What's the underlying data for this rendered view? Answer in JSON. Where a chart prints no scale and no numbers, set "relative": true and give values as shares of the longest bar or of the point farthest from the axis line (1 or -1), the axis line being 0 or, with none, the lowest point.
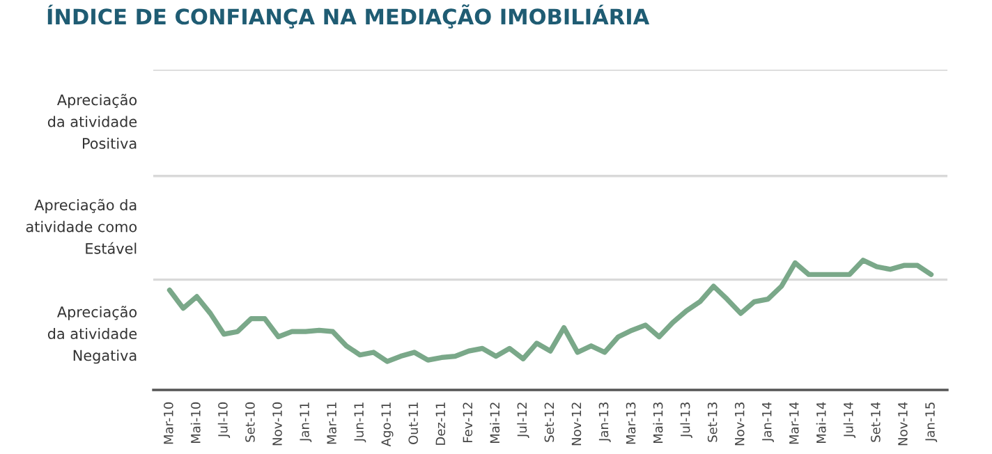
{
  "chart_data": {
    "type": "line",
    "title": "ÍNDICE DE CONFIANÇA NA MEDIAÇÃO IMOBILIÁRIA",
    "relative": true,
    "categories": [
      "Mar-10",
      null,
      "Mai-10",
      null,
      "Jul-10",
      null,
      "Set-10",
      null,
      "Nov-10",
      null,
      "Jan-11",
      null,
      "Mar-11",
      null,
      "Jun-11",
      null,
      "Ago-11",
      null,
      "Out-11",
      null,
      "Dez-11",
      null,
      "Fev-12",
      null,
      "Mai-12",
      null,
      "Jul-12",
      null,
      "Set-12",
      null,
      "Nov-12",
      null,
      "Jan-13",
      null,
      "Mar-13",
      null,
      "Mai-13",
      null,
      "Jul-13",
      null,
      "Set-13",
      null,
      "Nov-13",
      null,
      "Jan-14",
      null,
      "Mar-14",
      null,
      "Mai-14",
      null,
      "Jul-14",
      null,
      "Set-14",
      null,
      "Nov-14",
      null,
      "Jan-15"
    ],
    "series": [
      {
        "color": "#7aa889",
        "values": [
          0.77,
          0.63,
          0.72,
          0.59,
          0.43,
          0.45,
          0.55,
          0.55,
          0.41,
          0.45,
          0.45,
          0.46,
          0.45,
          0.34,
          0.27,
          0.29,
          0.22,
          0.26,
          0.29,
          0.23,
          0.25,
          0.26,
          0.3,
          0.32,
          0.26,
          0.32,
          0.24,
          0.36,
          0.3,
          0.48,
          0.29,
          0.34,
          0.29,
          0.41,
          0.46,
          0.5,
          0.41,
          0.52,
          0.61,
          0.68,
          0.8,
          0.7,
          0.59,
          0.68,
          0.7,
          0.8,
          0.98,
          0.89,
          0.89,
          0.89,
          0.89,
          1.0,
          0.95,
          0.93,
          0.96,
          0.96,
          0.89
        ]
      }
    ],
    "ref_lines": [
      {
        "axis": "y",
        "value": 0.85,
        "color": "#d9d9d9"
      },
      {
        "axis": "y",
        "value": 1.65,
        "color": "#d9d9d9"
      },
      {
        "axis": "y",
        "value": 2.47,
        "color": "#d9d9d9"
      }
    ],
    "annotations": [
      "Apreciação\nda atividade\nNegativa",
      "Apreciação da\natividade como\nEstável",
      "Apreciação\nda atividade\nPositiva"
    ],
    "line_style": "solid",
    "marker": "none",
    "grid": false,
    "legend": false
  }
}
